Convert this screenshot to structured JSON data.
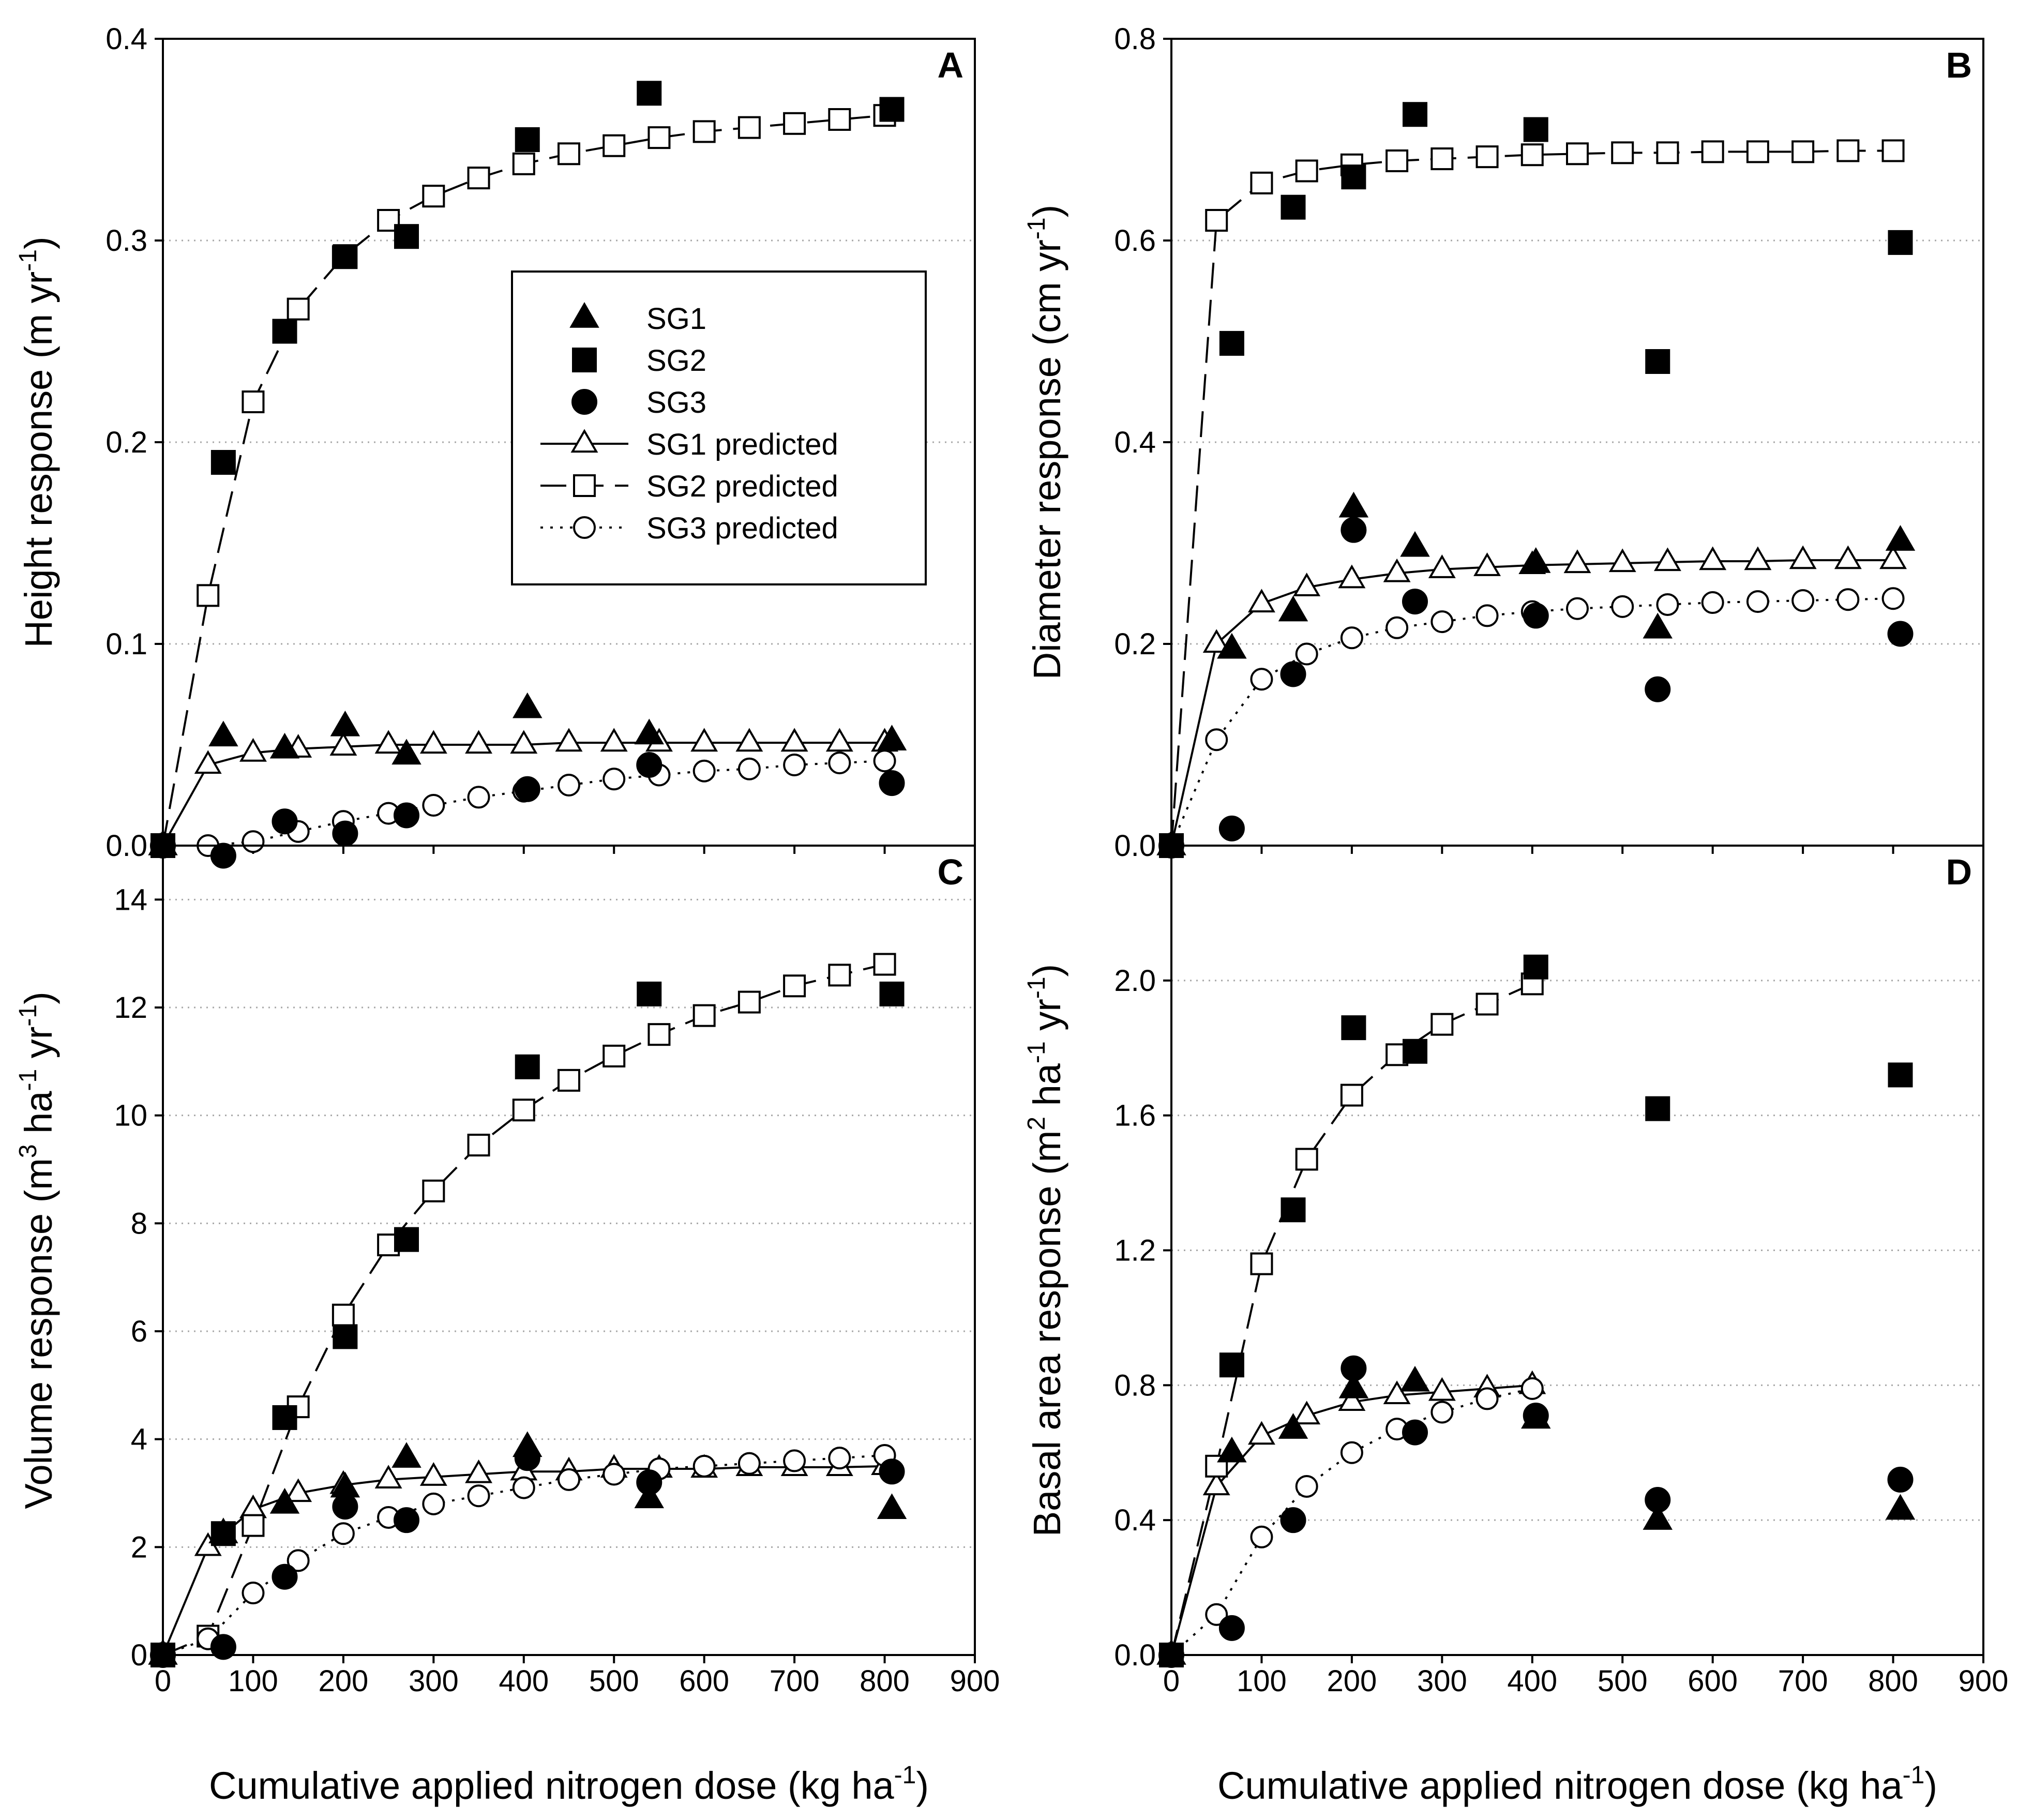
{
  "figure": {
    "xlabel_text": "Cumulative applied nitrogen dose (kg ha",
    "xlabel_sup": "-1",
    "xlabel_end": ")"
  },
  "legend": {
    "entries": [
      {
        "label": "SG1",
        "series": "SG1",
        "kind": "observed"
      },
      {
        "label": "SG2",
        "series": "SG2",
        "kind": "observed"
      },
      {
        "label": "SG3",
        "series": "SG3",
        "kind": "observed"
      },
      {
        "label": "SG1 predicted",
        "series": "SG1",
        "kind": "predicted"
      },
      {
        "label": "SG2 predicted",
        "series": "SG2",
        "kind": "predicted"
      },
      {
        "label": "SG3 predicted",
        "series": "SG3",
        "kind": "predicted"
      }
    ]
  },
  "chart_data": [
    {
      "type": "scatter",
      "panel": "A",
      "ylabel": {
        "parts": [
          {
            "t": "Height response (m yr"
          },
          {
            "t": "-1",
            "sup": true
          },
          {
            "t": ")"
          }
        ]
      },
      "xlabel": "Cumulative applied nitrogen dose (kg ha-1)",
      "xlim": [
        0,
        900
      ],
      "ylim": [
        0,
        0.4
      ],
      "yticks": [
        0.0,
        0.1,
        0.2,
        0.3,
        0.4
      ],
      "ytick_labels": [
        "0.0",
        "0.1",
        "0.2",
        "0.3",
        "0.4"
      ],
      "xticks": [
        0,
        100,
        200,
        300,
        400,
        500,
        600,
        700,
        800,
        900
      ],
      "xtick_labels": [
        "0",
        "100",
        "200",
        "300",
        "400",
        "500",
        "600",
        "700",
        "800",
        "900"
      ],
      "show_x_tick_labels": true,
      "gridlines": "horizontal dotted",
      "observed": [
        {
          "name": "SG1",
          "x": [
            0,
            67,
            135,
            202,
            270,
            404,
            539,
            808
          ],
          "y": [
            0.0,
            0.054,
            0.048,
            0.059,
            0.045,
            0.068,
            0.055,
            0.052
          ]
        },
        {
          "name": "SG2",
          "x": [
            0,
            67,
            135,
            202,
            270,
            404,
            539,
            808
          ],
          "y": [
            0.0,
            0.19,
            0.255,
            0.292,
            0.302,
            0.35,
            0.373,
            0.365
          ]
        },
        {
          "name": "SG3",
          "x": [
            0,
            67,
            135,
            202,
            270,
            404,
            539,
            808
          ],
          "y": [
            0.0,
            -0.005,
            0.012,
            0.006,
            0.015,
            0.028,
            0.04,
            0.031
          ]
        }
      ],
      "predicted": [
        {
          "name": "SG1 predicted",
          "x": [
            0,
            50,
            100,
            150,
            200,
            250,
            300,
            350,
            400,
            450,
            500,
            550,
            600,
            650,
            700,
            750,
            800
          ],
          "y": [
            0.0,
            0.04,
            0.046,
            0.048,
            0.049,
            0.05,
            0.05,
            0.05,
            0.05,
            0.051,
            0.051,
            0.051,
            0.051,
            0.051,
            0.051,
            0.051,
            0.051
          ]
        },
        {
          "name": "SG2 predicted",
          "x": [
            0,
            50,
            100,
            150,
            200,
            250,
            300,
            350,
            400,
            450,
            500,
            550,
            600,
            650,
            700,
            750,
            800
          ],
          "y": [
            0.0,
            0.124,
            0.22,
            0.266,
            0.292,
            0.31,
            0.322,
            0.331,
            0.338,
            0.343,
            0.347,
            0.351,
            0.354,
            0.356,
            0.358,
            0.36,
            0.362
          ]
        },
        {
          "name": "SG3 predicted",
          "x": [
            0,
            50,
            100,
            150,
            200,
            250,
            300,
            350,
            400,
            450,
            500,
            550,
            600,
            650,
            700,
            750,
            800
          ],
          "y": [
            0.0,
            0.0,
            0.002,
            0.007,
            0.012,
            0.016,
            0.02,
            0.024,
            0.027,
            0.03,
            0.033,
            0.035,
            0.037,
            0.038,
            0.04,
            0.041,
            0.042
          ]
        }
      ]
    },
    {
      "type": "scatter",
      "panel": "B",
      "ylabel": {
        "parts": [
          {
            "t": "Diameter response (cm yr"
          },
          {
            "t": "-1",
            "sup": true
          },
          {
            "t": ")"
          }
        ]
      },
      "xlabel": "Cumulative applied nitrogen dose (kg ha-1)",
      "xlim": [
        0,
        900
      ],
      "ylim": [
        0,
        0.8
      ],
      "yticks": [
        0.0,
        0.2,
        0.4,
        0.6,
        0.8
      ],
      "ytick_labels": [
        "0.0",
        "0.2",
        "0.4",
        "0.6",
        "0.8"
      ],
      "xticks": [
        0,
        100,
        200,
        300,
        400,
        500,
        600,
        700,
        800,
        900
      ],
      "xtick_labels": [
        "0",
        "100",
        "200",
        "300",
        "400",
        "500",
        "600",
        "700",
        "800",
        "900"
      ],
      "show_x_tick_labels": true,
      "gridlines": "horizontal dotted",
      "observed": [
        {
          "name": "SG1",
          "x": [
            0,
            67,
            135,
            202,
            270,
            404,
            539,
            808
          ],
          "y": [
            0.0,
            0.195,
            0.232,
            0.335,
            0.296,
            0.28,
            0.215,
            0.302
          ]
        },
        {
          "name": "SG2",
          "x": [
            0,
            67,
            135,
            202,
            270,
            404,
            539,
            808
          ],
          "y": [
            0.0,
            0.498,
            0.633,
            0.663,
            0.725,
            0.71,
            0.48,
            0.598
          ]
        },
        {
          "name": "SG3",
          "x": [
            0,
            67,
            135,
            202,
            270,
            404,
            539,
            808
          ],
          "y": [
            0.0,
            0.017,
            0.17,
            0.313,
            0.242,
            0.228,
            0.155,
            0.21
          ]
        }
      ],
      "predicted": [
        {
          "name": "SG1 predicted",
          "x": [
            0,
            50,
            100,
            150,
            200,
            250,
            300,
            350,
            400,
            450,
            500,
            550,
            600,
            650,
            700,
            750,
            800
          ],
          "y": [
            0.0,
            0.2,
            0.24,
            0.256,
            0.264,
            0.27,
            0.274,
            0.276,
            0.278,
            0.279,
            0.28,
            0.281,
            0.282,
            0.282,
            0.283,
            0.283,
            0.283
          ]
        },
        {
          "name": "SG2 predicted",
          "x": [
            0,
            50,
            100,
            150,
            200,
            250,
            300,
            350,
            400,
            450,
            500,
            550,
            600,
            650,
            700,
            750,
            800
          ],
          "y": [
            0.0,
            0.62,
            0.657,
            0.669,
            0.675,
            0.679,
            0.681,
            0.683,
            0.685,
            0.686,
            0.687,
            0.687,
            0.688,
            0.688,
            0.688,
            0.689,
            0.689
          ]
        },
        {
          "name": "SG3 predicted",
          "x": [
            0,
            50,
            100,
            150,
            200,
            250,
            300,
            350,
            400,
            450,
            500,
            550,
            600,
            650,
            700,
            750,
            800
          ],
          "y": [
            0.0,
            0.105,
            0.165,
            0.19,
            0.206,
            0.216,
            0.222,
            0.228,
            0.232,
            0.235,
            0.237,
            0.239,
            0.241,
            0.242,
            0.243,
            0.244,
            0.245
          ]
        }
      ]
    },
    {
      "type": "scatter",
      "panel": "C",
      "ylabel": {
        "parts": [
          {
            "t": "Volume response (m"
          },
          {
            "t": "3",
            "sup": true
          },
          {
            "t": " ha"
          },
          {
            "t": "-1",
            "sup": true
          },
          {
            "t": " yr"
          },
          {
            "t": "-1",
            "sup": true
          },
          {
            "t": ")"
          }
        ]
      },
      "xlabel": "Cumulative applied nitrogen dose (kg ha-1)",
      "xlim": [
        0,
        900
      ],
      "ylim": [
        0,
        15
      ],
      "yticks": [
        0,
        2,
        4,
        6,
        8,
        10,
        12,
        14
      ],
      "ytick_labels": [
        "0",
        "2",
        "4",
        "6",
        "8",
        "10",
        "12",
        "14"
      ],
      "xticks": [
        0,
        100,
        200,
        300,
        400,
        500,
        600,
        700,
        800,
        900
      ],
      "xtick_labels": [
        "0",
        "100",
        "200",
        "300",
        "400",
        "500",
        "600",
        "700",
        "800",
        "900"
      ],
      "show_x_tick_labels": true,
      "gridlines": "horizontal dotted",
      "observed": [
        {
          "name": "SG1",
          "x": [
            0,
            67,
            135,
            202,
            270,
            404,
            539,
            808
          ],
          "y": [
            0.0,
            2.25,
            2.8,
            3.1,
            3.65,
            3.85,
            2.9,
            2.7
          ]
        },
        {
          "name": "SG2",
          "x": [
            0,
            67,
            135,
            202,
            270,
            404,
            539,
            808
          ],
          "y": [
            0.0,
            2.25,
            4.4,
            5.9,
            7.7,
            10.9,
            12.25,
            12.25
          ]
        },
        {
          "name": "SG3",
          "x": [
            0,
            67,
            135,
            202,
            270,
            404,
            539,
            808
          ],
          "y": [
            0.0,
            0.15,
            1.45,
            2.75,
            2.5,
            3.65,
            3.2,
            3.4
          ]
        }
      ],
      "predicted": [
        {
          "name": "SG1 predicted",
          "x": [
            0,
            50,
            100,
            150,
            200,
            250,
            300,
            350,
            400,
            450,
            500,
            550,
            600,
            650,
            700,
            750,
            800
          ],
          "y": [
            0.0,
            2.0,
            2.7,
            3.0,
            3.15,
            3.25,
            3.3,
            3.35,
            3.4,
            3.4,
            3.45,
            3.45,
            3.45,
            3.48,
            3.48,
            3.48,
            3.5
          ]
        },
        {
          "name": "SG2 predicted",
          "x": [
            0,
            50,
            100,
            150,
            200,
            250,
            300,
            350,
            400,
            450,
            500,
            550,
            600,
            650,
            700,
            750,
            800
          ],
          "y": [
            0.0,
            0.35,
            2.4,
            4.6,
            6.3,
            7.6,
            8.6,
            9.45,
            10.1,
            10.65,
            11.1,
            11.5,
            11.85,
            12.1,
            12.4,
            12.6,
            12.8
          ]
        },
        {
          "name": "SG3 predicted",
          "x": [
            0,
            50,
            100,
            150,
            200,
            250,
            300,
            350,
            400,
            450,
            500,
            550,
            600,
            650,
            700,
            750,
            800
          ],
          "y": [
            0.0,
            0.3,
            1.15,
            1.75,
            2.25,
            2.55,
            2.8,
            2.95,
            3.1,
            3.25,
            3.35,
            3.45,
            3.5,
            3.55,
            3.6,
            3.65,
            3.7
          ]
        }
      ]
    },
    {
      "type": "scatter",
      "panel": "D",
      "ylabel": {
        "parts": [
          {
            "t": "Basal area response (m"
          },
          {
            "t": "2",
            "sup": true
          },
          {
            "t": " ha"
          },
          {
            "t": "-1",
            "sup": true
          },
          {
            "t": " yr"
          },
          {
            "t": "-1",
            "sup": true
          },
          {
            "t": ")"
          }
        ]
      },
      "xlabel": "Cumulative applied nitrogen dose (kg ha-1)",
      "xlim": [
        0,
        900
      ],
      "ylim": [
        0,
        2.4
      ],
      "yticks": [
        0.0,
        0.4,
        0.8,
        1.2,
        1.6,
        2.0
      ],
      "ytick_labels": [
        "0.0",
        "0.4",
        "0.8",
        "1.2",
        "1.6",
        "2.0"
      ],
      "xticks": [
        0,
        100,
        200,
        300,
        400,
        500,
        600,
        700,
        800,
        900
      ],
      "xtick_labels": [
        "0",
        "100",
        "200",
        "300",
        "400",
        "500",
        "600",
        "700",
        "800",
        "900"
      ],
      "show_x_tick_labels": true,
      "gridlines": "horizontal dotted",
      "observed": [
        {
          "name": "SG1",
          "x": [
            0,
            67,
            135,
            202,
            270,
            404,
            539,
            808
          ],
          "y": [
            0.0,
            0.6,
            0.67,
            0.79,
            0.81,
            0.7,
            0.4,
            0.43
          ]
        },
        {
          "name": "SG2",
          "x": [
            0,
            67,
            135,
            202,
            270,
            404,
            539,
            808
          ],
          "y": [
            0.0,
            0.86,
            1.32,
            1.86,
            1.79,
            2.04,
            1.62,
            1.72
          ]
        },
        {
          "name": "SG3",
          "x": [
            0,
            67,
            135,
            202,
            270,
            404,
            539,
            808
          ],
          "y": [
            0.0,
            0.08,
            0.4,
            0.85,
            0.66,
            0.71,
            0.46,
            0.52
          ]
        }
      ],
      "predicted": [
        {
          "name": "SG1 predicted",
          "x": [
            0,
            50,
            100,
            150,
            200,
            250,
            300,
            350,
            400
          ],
          "y": [
            0.0,
            0.5,
            0.65,
            0.71,
            0.75,
            0.77,
            0.78,
            0.79,
            0.8
          ]
        },
        {
          "name": "SG2 predicted",
          "x": [
            0,
            50,
            100,
            150,
            200,
            250,
            300,
            350,
            400
          ],
          "y": [
            0.0,
            0.56,
            1.16,
            1.47,
            1.66,
            1.78,
            1.87,
            1.93,
            1.99
          ]
        },
        {
          "name": "SG3 predicted",
          "x": [
            0,
            50,
            100,
            150,
            200,
            250,
            300,
            350,
            400
          ],
          "y": [
            0.0,
            0.12,
            0.35,
            0.5,
            0.6,
            0.67,
            0.72,
            0.76,
            0.79
          ]
        }
      ]
    }
  ]
}
